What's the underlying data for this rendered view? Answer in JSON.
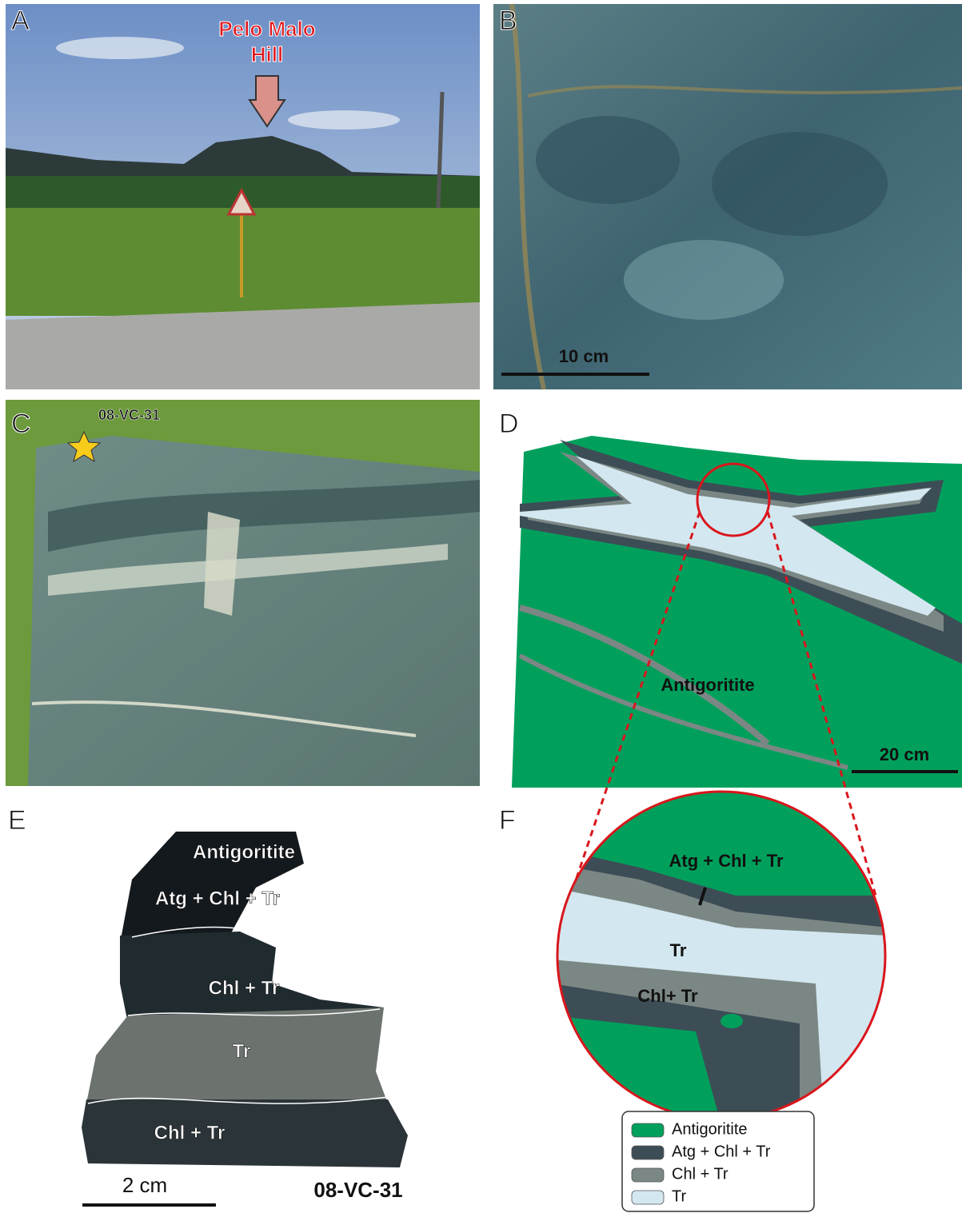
{
  "panels": {
    "A": {
      "label": "A",
      "annotation": [
        "Pelo Malo",
        "Hill"
      ]
    },
    "B": {
      "label": "B",
      "scale_bar": "10 cm"
    },
    "C": {
      "label": "C",
      "sample": "08-VC-31"
    },
    "D": {
      "label": "D",
      "unit_label": "Antigoritite",
      "scale_bar": "20 cm"
    },
    "E": {
      "label": "E",
      "zones": [
        "Antigoritite",
        "Atg + Chl + Tr",
        "Chl + Tr",
        "Tr",
        "Chl + Tr"
      ],
      "scale_bar": "2 cm",
      "sample": "08-VC-31"
    },
    "F": {
      "label": "F",
      "zones": [
        "Atg + Chl + Tr",
        "Tr",
        "Chl+ Tr"
      ]
    }
  },
  "legend": [
    {
      "label": "Antigoritite",
      "color": "#00a05c"
    },
    {
      "label": "Atg + Chl + Tr",
      "color": "#3d4d56"
    },
    {
      "label": "Chl + Tr",
      "color": "#7b8784"
    },
    {
      "label": "Tr",
      "color": "#d3e7f0"
    }
  ]
}
